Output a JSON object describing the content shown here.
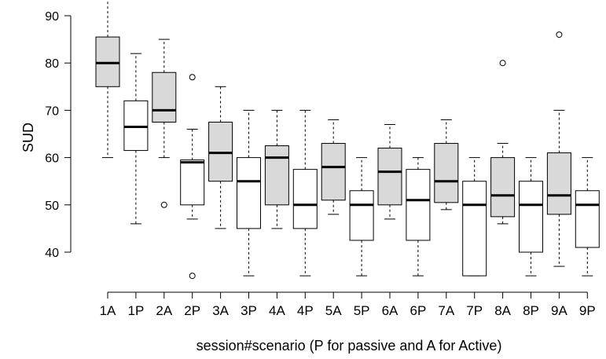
{
  "chart_data": {
    "type": "boxplot",
    "title": "",
    "xlabel": "session#scenario (P for passive and A for Active)",
    "ylabel": "SUD",
    "ylim": [
      30,
      93
    ],
    "yticks": [
      40,
      50,
      60,
      70,
      80,
      90
    ],
    "legend": "none",
    "grid": false,
    "colors": {
      "active": "#d9d9d9",
      "passive": "#ffffff",
      "stroke": "#000000"
    },
    "categories": [
      "1A",
      "1P",
      "2A",
      "2P",
      "3A",
      "3P",
      "4A",
      "4P",
      "5A",
      "5P",
      "6A",
      "6P",
      "7A",
      "7P",
      "8A",
      "8P",
      "9A",
      "9P"
    ],
    "boxes": [
      {
        "label": "1A",
        "scenario": "active",
        "min": 60,
        "q1": 75,
        "median": 80,
        "q3": 85.5,
        "max": 95,
        "outliers": []
      },
      {
        "label": "1P",
        "scenario": "passive",
        "min": 46,
        "q1": 61.5,
        "median": 66.5,
        "q3": 72,
        "max": 82,
        "outliers": []
      },
      {
        "label": "2A",
        "scenario": "active",
        "min": 60,
        "q1": 67.5,
        "median": 70,
        "q3": 78,
        "max": 85,
        "outliers": [
          50
        ]
      },
      {
        "label": "2P",
        "scenario": "passive",
        "min": 47,
        "q1": 50,
        "median": 59,
        "q3": 59.5,
        "max": 66,
        "outliers": [
          77,
          35
        ]
      },
      {
        "label": "3A",
        "scenario": "active",
        "min": 45,
        "q1": 55,
        "median": 61,
        "q3": 67.5,
        "max": 75,
        "outliers": []
      },
      {
        "label": "3P",
        "scenario": "passive",
        "min": 35,
        "q1": 45,
        "median": 55,
        "q3": 60,
        "max": 70,
        "outliers": []
      },
      {
        "label": "4A",
        "scenario": "active",
        "min": 45,
        "q1": 50,
        "median": 60,
        "q3": 62.5,
        "max": 70,
        "outliers": []
      },
      {
        "label": "4P",
        "scenario": "passive",
        "min": 35,
        "q1": 45,
        "median": 50,
        "q3": 57.5,
        "max": 70,
        "outliers": []
      },
      {
        "label": "5A",
        "scenario": "active",
        "min": 48,
        "q1": 51,
        "median": 58,
        "q3": 63,
        "max": 68,
        "outliers": []
      },
      {
        "label": "5P",
        "scenario": "passive",
        "min": 35,
        "q1": 42.5,
        "median": 50,
        "q3": 53,
        "max": 60,
        "outliers": []
      },
      {
        "label": "6A",
        "scenario": "active",
        "min": 47,
        "q1": 50,
        "median": 57,
        "q3": 62,
        "max": 67,
        "outliers": []
      },
      {
        "label": "6P",
        "scenario": "passive",
        "min": 35,
        "q1": 42.5,
        "median": 51,
        "q3": 57.5,
        "max": 60,
        "outliers": []
      },
      {
        "label": "7A",
        "scenario": "active",
        "min": 49,
        "q1": 50.5,
        "median": 55,
        "q3": 63,
        "max": 68,
        "outliers": []
      },
      {
        "label": "7P",
        "scenario": "passive",
        "min": 35,
        "q1": 35,
        "median": 50,
        "q3": 55,
        "max": 60,
        "outliers": []
      },
      {
        "label": "8A",
        "scenario": "active",
        "min": 46,
        "q1": 47.5,
        "median": 52,
        "q3": 60,
        "max": 63,
        "outliers": [
          80
        ]
      },
      {
        "label": "8P",
        "scenario": "passive",
        "min": 35,
        "q1": 40,
        "median": 50,
        "q3": 55,
        "max": 60,
        "outliers": []
      },
      {
        "label": "9A",
        "scenario": "active",
        "min": 37,
        "q1": 48,
        "median": 52,
        "q3": 61,
        "max": 70,
        "outliers": [
          86
        ]
      },
      {
        "label": "9P",
        "scenario": "passive",
        "min": 35,
        "q1": 41,
        "median": 50,
        "q3": 53,
        "max": 60,
        "outliers": []
      }
    ]
  }
}
